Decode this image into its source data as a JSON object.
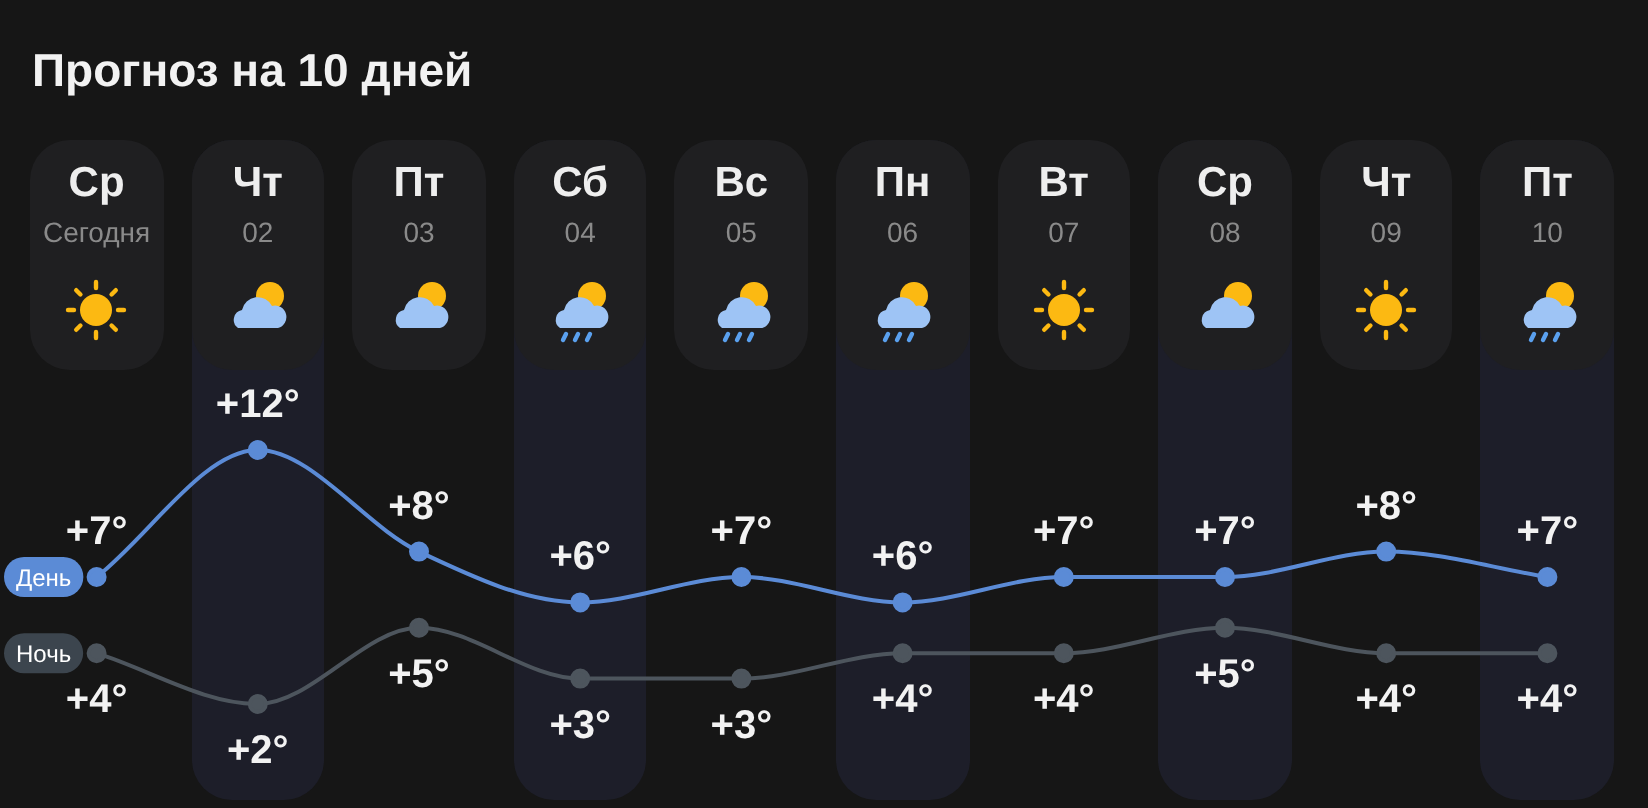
{
  "chart_data": {
    "type": "line",
    "title": "Прогноз на 10 дней",
    "categories": [
      "Ср Сегодня",
      "Чт 02",
      "Пт 03",
      "Сб 04",
      "Вс 05",
      "Пн 06",
      "Вт 07",
      "Ср 08",
      "Чт 09",
      "Пт 10"
    ],
    "series": [
      {
        "name": "День",
        "color": "#5b8bd6",
        "values": [
          7,
          12,
          8,
          6,
          7,
          6,
          7,
          7,
          8,
          7
        ],
        "value_labels": [
          "+7°",
          "+12°",
          "+8°",
          "+6°",
          "+7°",
          "+6°",
          "+7°",
          "+7°",
          "+8°",
          "+7°"
        ]
      },
      {
        "name": "Ночь",
        "color": "#4d555d",
        "values": [
          4,
          2,
          5,
          3,
          3,
          4,
          4,
          5,
          4,
          4
        ],
        "value_labels": [
          "+4°",
          "+2°",
          "+5°",
          "+3°",
          "+3°",
          "+4°",
          "+4°",
          "+5°",
          "+4°",
          "+4°"
        ]
      }
    ],
    "marker": "circle",
    "line_style": "solid",
    "grid": false,
    "legend": false,
    "tick_labels": "x"
  }
}
